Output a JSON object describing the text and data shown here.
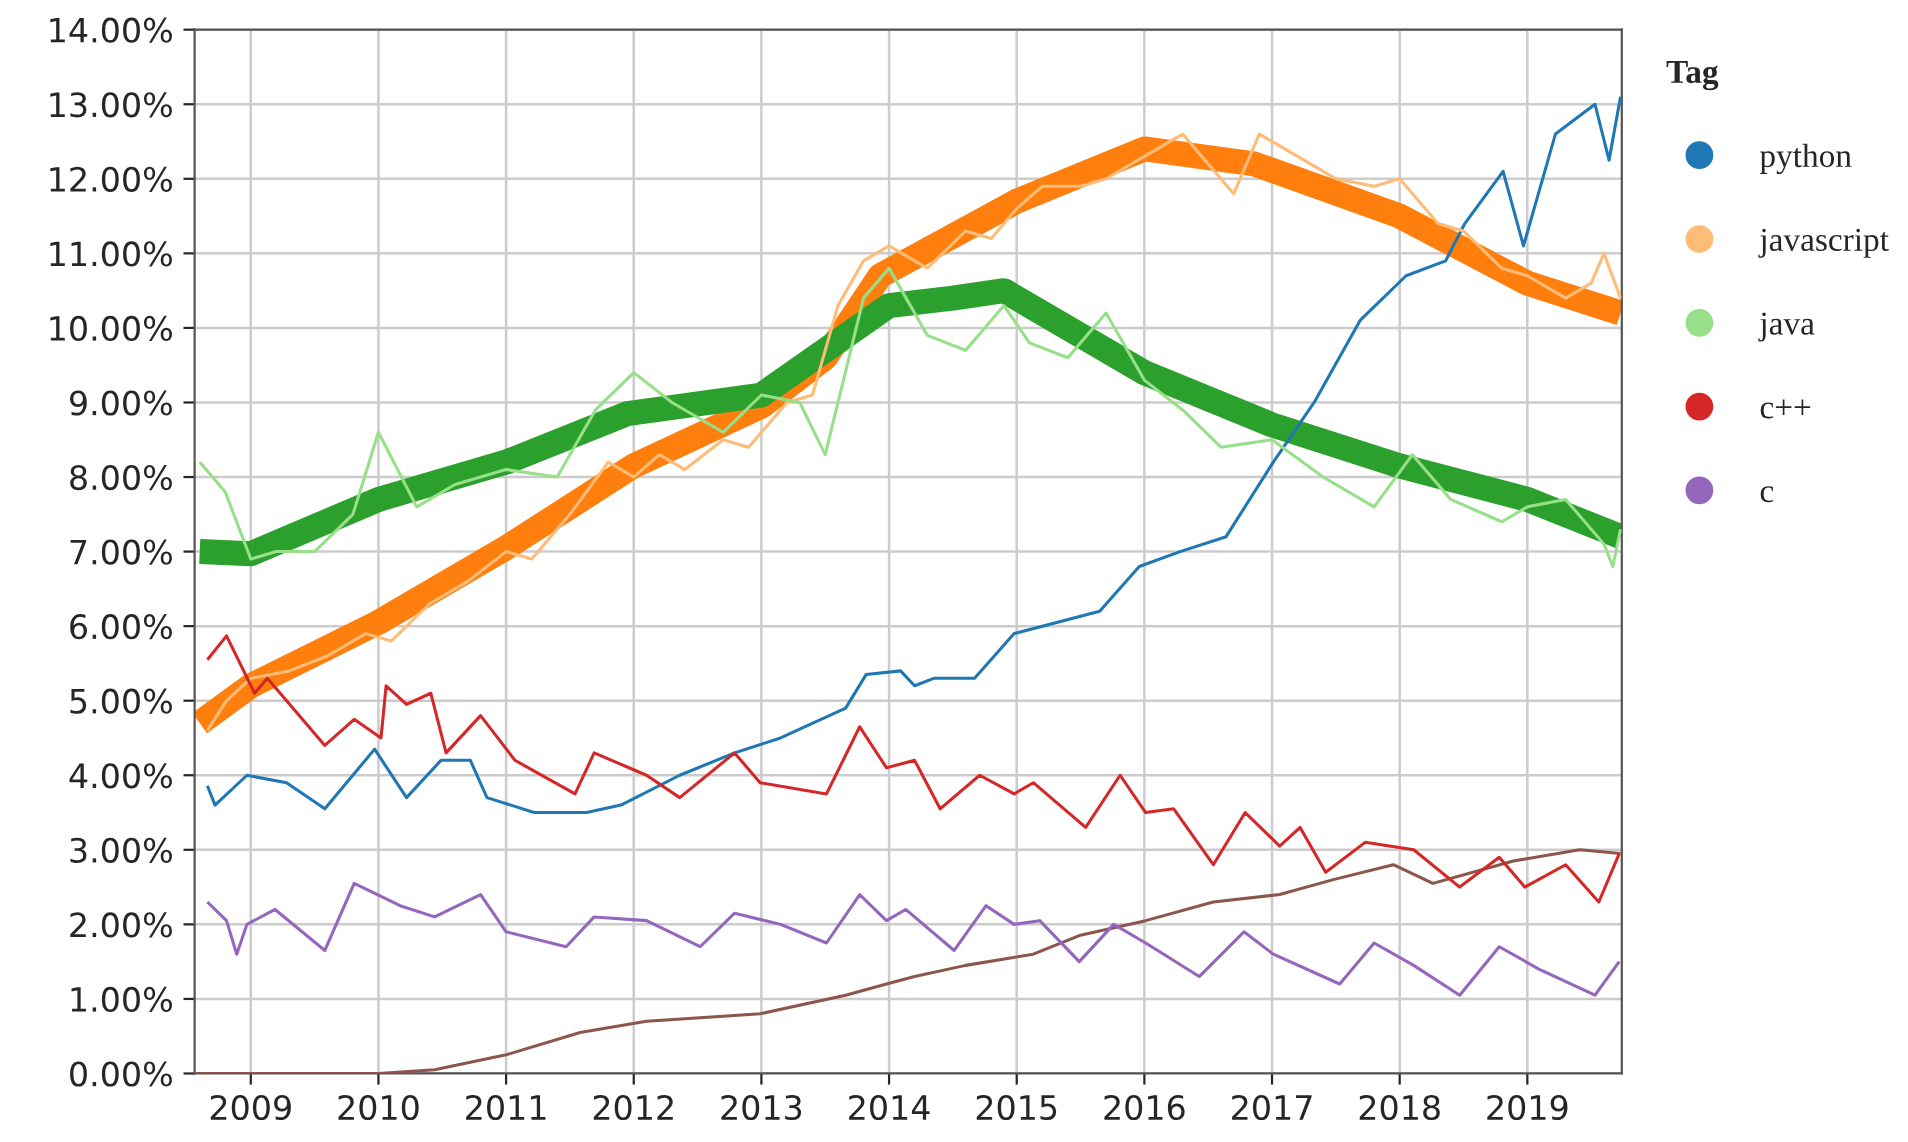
{
  "chart_data": {
    "type": "line",
    "legend_title": "Tag",
    "legend": "top right",
    "grid": true,
    "xlim": [
      2008.56,
      2019.74
    ],
    "xticks": [
      2009,
      2010,
      2011,
      2012,
      2013,
      2014,
      2015,
      2016,
      2017,
      2018,
      2019
    ],
    "ylim": [
      0,
      14
    ],
    "yticks": [
      {
        "value": 0,
        "label": "0.00%"
      },
      {
        "value": 1,
        "label": "1.00%"
      },
      {
        "value": 2,
        "label": "2.00%"
      },
      {
        "value": 3,
        "label": "3.00%"
      },
      {
        "value": 4,
        "label": "4.00%"
      },
      {
        "value": 5,
        "label": "5.00%"
      },
      {
        "value": 6,
        "label": "6.00%"
      },
      {
        "value": 7,
        "label": "7.00%"
      },
      {
        "value": 8,
        "label": "8.00%"
      },
      {
        "value": 9,
        "label": "9.00%"
      },
      {
        "value": 10,
        "label": "10.00%"
      },
      {
        "value": 11,
        "label": "11.00%"
      },
      {
        "value": 12,
        "label": "12.00%"
      },
      {
        "value": 13,
        "label": "13.00%"
      },
      {
        "value": 14,
        "label": "14.00%"
      }
    ],
    "series": [
      {
        "name": "python",
        "color": "#1f77b4",
        "x": [
          2008.66,
          2008.72,
          2008.97,
          2009.28,
          2009.58,
          2009.97,
          2010.22,
          2010.49,
          2010.72,
          2010.85,
          2011.22,
          2011.63,
          2011.9,
          2012.36,
          2012.79,
          2013.15,
          2013.66,
          2013.82,
          2014.09,
          2014.2,
          2014.35,
          2014.67,
          2014.98,
          2015.65,
          2015.96,
          2016.28,
          2016.64,
          2017.01,
          2017.33,
          2017.69,
          2018.05,
          2018.36,
          2018.51,
          2018.81,
          2018.97,
          2019.22,
          2019.53,
          2019.64,
          2019.73
        ],
        "values": [
          3.86,
          3.6,
          4.0,
          3.9,
          3.55,
          4.35,
          3.7,
          4.2,
          4.2,
          3.7,
          3.5,
          3.5,
          3.6,
          4.0,
          4.3,
          4.5,
          4.9,
          5.35,
          5.4,
          5.2,
          5.3,
          5.3,
          5.9,
          6.2,
          6.8,
          7.0,
          7.2,
          8.2,
          9.0,
          10.1,
          10.7,
          10.9,
          11.4,
          12.1,
          11.1,
          12.6,
          13.0,
          12.25,
          13.1
        ]
      },
      {
        "name": "javascript",
        "color": "#ffbb78",
        "x": [
          2008.66,
          2008.81,
          2009.0,
          2009.3,
          2009.6,
          2009.9,
          2010.1,
          2010.4,
          2010.7,
          2011.0,
          2011.2,
          2011.5,
          2011.8,
          2012.0,
          2012.2,
          2012.4,
          2012.7,
          2012.9,
          2013.2,
          2013.4,
          2013.6,
          2013.8,
          2014.0,
          2014.3,
          2014.6,
          2014.8,
          2015.0,
          2015.2,
          2015.5,
          2015.7,
          2016.0,
          2016.3,
          2016.5,
          2016.7,
          2016.9,
          2017.2,
          2017.5,
          2017.8,
          2018.0,
          2018.3,
          2018.5,
          2018.8,
          2019.0,
          2019.3,
          2019.5,
          2019.6,
          2019.73
        ],
        "values": [
          4.6,
          5.0,
          5.3,
          5.4,
          5.6,
          5.9,
          5.8,
          6.3,
          6.6,
          7.0,
          6.9,
          7.5,
          8.2,
          8.0,
          8.3,
          8.1,
          8.5,
          8.4,
          9.0,
          9.1,
          10.3,
          10.9,
          11.1,
          10.8,
          11.3,
          11.2,
          11.6,
          11.9,
          11.9,
          12.0,
          12.3,
          12.6,
          12.2,
          11.8,
          12.6,
          12.3,
          12.0,
          11.9,
          12.0,
          11.4,
          11.3,
          10.8,
          10.7,
          10.4,
          10.6,
          11.0,
          10.4
        ]
      },
      {
        "name": "java",
        "color": "#98df8a",
        "x": [
          2008.6,
          2008.8,
          2009.0,
          2009.2,
          2009.5,
          2009.8,
          2010.0,
          2010.3,
          2010.6,
          2011.0,
          2011.4,
          2011.7,
          2012.0,
          2012.3,
          2012.7,
          2013.0,
          2013.3,
          2013.5,
          2013.8,
          2014.0,
          2014.3,
          2014.6,
          2014.9,
          2015.1,
          2015.4,
          2015.7,
          2016.0,
          2016.3,
          2016.6,
          2017.0,
          2017.4,
          2017.8,
          2018.1,
          2018.4,
          2018.8,
          2019.0,
          2019.3,
          2019.6,
          2019.67,
          2019.73
        ],
        "values": [
          8.2,
          7.8,
          6.9,
          7.0,
          7.0,
          7.5,
          8.6,
          7.6,
          7.9,
          8.1,
          8.0,
          8.9,
          9.4,
          9.0,
          8.6,
          9.1,
          9.0,
          8.3,
          10.4,
          10.8,
          9.9,
          9.7,
          10.3,
          9.8,
          9.6,
          10.2,
          9.3,
          8.9,
          8.4,
          8.5,
          8.0,
          7.6,
          8.3,
          7.7,
          7.4,
          7.6,
          7.7,
          7.1,
          6.8,
          7.3
        ]
      },
      {
        "color": "#8c564b",
        "x": [
          2008.56,
          2010.0,
          2010.44,
          2011.0,
          2011.58,
          2012.1,
          2012.99,
          2013.66,
          2013.98,
          2014.2,
          2014.6,
          2015.13,
          2015.49,
          2016.01,
          2016.54,
          2017.06,
          2017.48,
          2017.95,
          2018.26,
          2018.89,
          2019.41,
          2019.73
        ],
        "values": [
          0,
          0,
          0.05,
          0.25,
          0.55,
          0.7,
          0.8,
          1.05,
          1.2,
          1.3,
          1.45,
          1.6,
          1.85,
          2.05,
          2.3,
          2.4,
          2.6,
          2.8,
          2.55,
          2.85,
          3.0,
          2.95
        ]
      },
      {
        "name": "c++",
        "color": "#d62728",
        "x": [
          2008.66,
          2008.81,
          2009.03,
          2009.13,
          2009.58,
          2009.81,
          2010.02,
          2010.06,
          2010.22,
          2010.41,
          2010.53,
          2010.8,
          2011.07,
          2011.54,
          2011.69,
          2012.1,
          2012.36,
          2012.79,
          2012.99,
          2013.51,
          2013.77,
          2013.98,
          2014.2,
          2014.4,
          2014.71,
          2014.98,
          2015.13,
          2015.54,
          2015.81,
          2016.01,
          2016.23,
          2016.54,
          2016.79,
          2017.06,
          2017.22,
          2017.42,
          2017.73,
          2018.11,
          2018.47,
          2018.78,
          2018.98,
          2019.3,
          2019.56,
          2019.72
        ],
        "values": [
          5.55,
          5.87,
          5.1,
          5.3,
          4.4,
          4.75,
          4.5,
          5.2,
          4.95,
          5.1,
          4.3,
          4.8,
          4.2,
          3.75,
          4.3,
          4.0,
          3.7,
          4.3,
          3.9,
          3.75,
          4.65,
          4.1,
          4.2,
          3.55,
          4.0,
          3.75,
          3.9,
          3.3,
          4.0,
          3.5,
          3.55,
          2.8,
          3.5,
          3.05,
          3.3,
          2.7,
          3.1,
          3.0,
          2.5,
          2.9,
          2.5,
          2.8,
          2.3,
          2.95
        ]
      },
      {
        "name": "c",
        "color": "#9467bd",
        "x": [
          2008.66,
          2008.81,
          2008.89,
          2008.97,
          2009.19,
          2009.58,
          2009.81,
          2010.17,
          2010.44,
          2010.8,
          2011.0,
          2011.47,
          2011.69,
          2012.1,
          2012.52,
          2012.79,
          2013.15,
          2013.51,
          2013.77,
          2013.98,
          2014.13,
          2014.51,
          2014.76,
          2014.98,
          2015.18,
          2015.49,
          2015.76,
          2016.01,
          2016.43,
          2016.78,
          2017.01,
          2017.53,
          2017.8,
          2018.11,
          2018.47,
          2018.78,
          2019.09,
          2019.53,
          2019.72
        ],
        "values": [
          2.3,
          2.05,
          1.6,
          2.0,
          2.2,
          1.65,
          2.55,
          2.25,
          2.1,
          2.4,
          1.9,
          1.7,
          2.1,
          2.05,
          1.7,
          2.15,
          2.0,
          1.75,
          2.4,
          2.05,
          2.2,
          1.65,
          2.25,
          2.0,
          2.05,
          1.5,
          2.0,
          1.75,
          1.3,
          1.9,
          1.6,
          1.2,
          1.75,
          1.45,
          1.05,
          1.7,
          1.4,
          1.05,
          1.5
        ]
      },
      {
        "type": "line",
        "color": "#ff7f0e",
        "x": [
          2008.6,
          2009.0,
          2010.0,
          2011.0,
          2012.0,
          2013.0,
          2013.5,
          2013.93,
          2015.0,
          2016.0,
          2016.86,
          2018.0,
          2019.0,
          2019.73
        ],
        "values": [
          4.7,
          5.2,
          6.05,
          7.05,
          8.15,
          8.95,
          9.6,
          10.7,
          11.7,
          12.4,
          12.2,
          11.5,
          10.6,
          10.2
        ]
      },
      {
        "type": "line",
        "color": "#2ca02c",
        "x": [
          2008.6,
          2009.0,
          2010.0,
          2011.0,
          2011.95,
          2013.0,
          2013.5,
          2014.0,
          2014.5,
          2014.9,
          2016.0,
          2017.0,
          2018.0,
          2019.0,
          2019.73
        ],
        "values": [
          7.0,
          6.97,
          7.7,
          8.2,
          8.85,
          9.1,
          9.7,
          10.3,
          10.4,
          10.5,
          9.4,
          8.7,
          8.15,
          7.7,
          7.2
        ]
      }
    ]
  }
}
